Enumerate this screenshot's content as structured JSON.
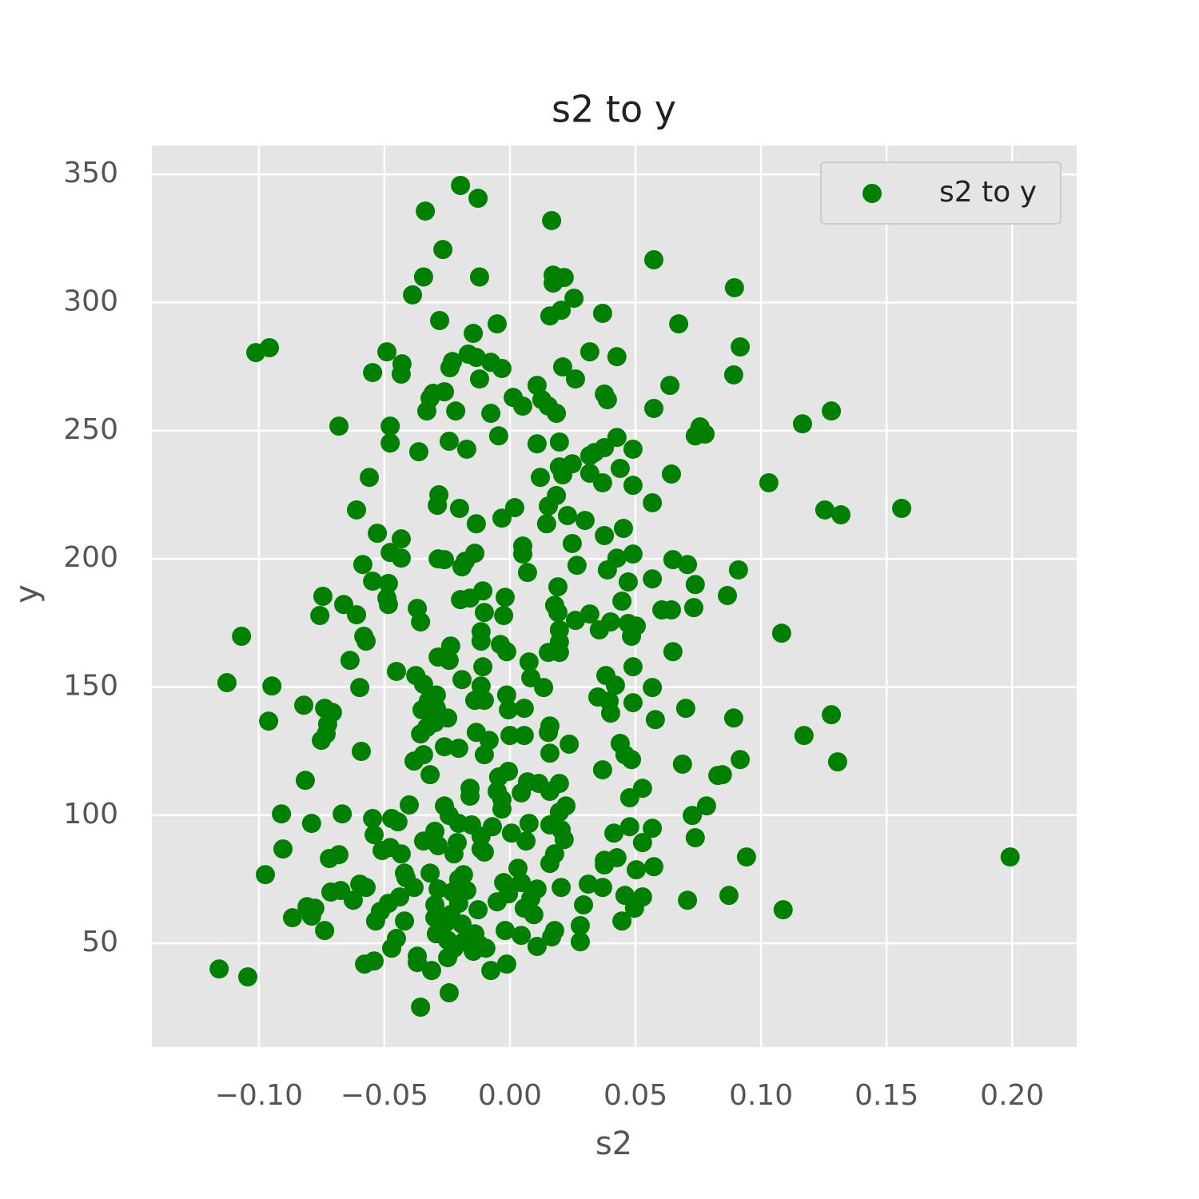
{
  "chart_data": {
    "type": "scatter",
    "title": "s2 to y",
    "x_label": "s2",
    "y_label": "y",
    "xlim": [
      -0.1426,
      0.2257
    ],
    "ylim": [
      9.5,
      361.3
    ],
    "xticks": [
      {
        "value": -0.1,
        "label": "−0.10"
      },
      {
        "value": -0.05,
        "label": "−0.05"
      },
      {
        "value": 0,
        "label": "0.00"
      },
      {
        "value": 0.05,
        "label": "0.05"
      },
      {
        "value": 0.1,
        "label": "0.10"
      },
      {
        "value": 0.15,
        "label": "0.15"
      },
      {
        "value": 0.2,
        "label": "0.20"
      }
    ],
    "yticks": [
      50,
      100,
      150,
      200,
      250,
      300,
      350
    ],
    "grid": true,
    "legend": "upper right",
    "series": [
      {
        "name": "s2 to y",
        "color": "#008000",
        "x": [
          -0.0197,
          -0.0127,
          -0.0337,
          0.0166,
          -0.0267,
          0.0573,
          -0.0344,
          -0.0121,
          0.0172,
          0.0216,
          0.0172,
          0.0894,
          -0.0388,
          0.0255,
          0.0204,
          0.0159,
          0.0369,
          -0.028,
          -0.0051,
          0.0672,
          -0.0146,
          -0.1012,
          -0.0958,
          -0.049,
          0.0917,
          -0.0166,
          0.0318,
          0.0426,
          -0.043,
          -0.0229,
          -0.0134,
          -0.0076,
          -0.0239,
          -0.0032,
          0.021,
          -0.0547,
          -0.0433,
          -0.0121,
          0.0261,
          0.0891,
          0.0108,
          0.0637,
          -0.0261,
          -0.0306,
          0.0376,
          0.0013,
          0.0127,
          0.0388,
          -0.0318,
          0.0051,
          0.0153,
          -0.0216,
          -0.0331,
          -0.0076,
          0.0185,
          0.0573,
          0.128,
          -0.0681,
          -0.0477,
          0.1165,
          0.0757,
          0.0738,
          0.0777,
          -0.0045,
          0.0426,
          -0.0477,
          -0.0242,
          0.0108,
          0.0197,
          -0.0172,
          -0.0363,
          0.049,
          0.0376,
          0.0337,
          0.0318,
          0.0248,
          0.0197,
          0.0439,
          0.0318,
          0.021,
          0.0121,
          0.0643,
          -0.056,
          0.0369,
          0.049,
          0.1031,
          -0.0283,
          0.0185,
          -0.0289,
          -0.0201,
          0.0019,
          0.0153,
          0.0567,
          -0.0611,
          0.1254,
          0.1318,
          0.156,
          -0.0032,
          0.0229,
          -0.0134,
          0.0146,
          0.0299,
          0.0452,
          -0.0528,
          -0.0433,
          0.0376,
          0.0248,
          0.0051,
          -0.0477,
          -0.0433,
          -0.0286,
          -0.0261,
          -0.0178,
          -0.014,
          0.0051,
          0.049,
          0.0426,
          0.0649,
          0.0707,
          -0.0586,
          -0.0191,
          0.0267,
          0.0388,
          0.091,
          0.007,
          -0.0547,
          -0.0484,
          0.0471,
          0.0567,
          0.0738,
          0.0191,
          -0.0108,
          -0.0745,
          0.0866,
          -0.049,
          -0.0019,
          -0.0197,
          -0.0159,
          0.0446,
          -0.0484,
          -0.0662,
          0.0178,
          -0.0369,
          0.0732,
          0.0605,
          0.0643,
          -0.0102,
          0.0191,
          0.0318,
          -0.0757,
          -0.0611,
          -0.0025,
          0.0261,
          0.0401,
          -0.0356,
          0.0471,
          0.0503,
          0.0356,
          0.1082,
          0.0197,
          -0.0115,
          -0.1069,
          -0.0582,
          0.0484,
          -0.0573,
          -0.0115,
          0.0197,
          -0.0038,
          -0.0236,
          -0.0013,
          0.0153,
          0.0197,
          0.0649,
          -0.0286,
          -0.0242,
          -0.0637,
          0.0076,
          -0.0108,
          0.049,
          -0.0452,
          -0.0375,
          0.0382,
          0.0083,
          -0.0191,
          -0.1127,
          -0.0948,
          -0.0344,
          0.042,
          0.0134,
          -0.0115,
          -0.0598,
          0.0567,
          -0.0293,
          -0.0013,
          0.035,
          -0.014,
          -0.0102,
          0.0395,
          0.049,
          -0.0325,
          -0.0821,
          -0.0738,
          -0.0293,
          0.0057,
          -0.0006,
          0.07,
          -0.035,
          -0.0707,
          0.0401,
          0.128,
          0.0891,
          -0.0248,
          0.0579,
          -0.0961,
          -0.0299,
          -0.0726,
          0.0159,
          -0.0331,
          0.0153,
          -0.0134,
          -0.0732,
          -0.0356,
          0,
          0.0057,
          0.1171,
          -0.0751,
          -0.0083,
          0.0439,
          0.0236,
          -0.0261,
          -0.0204,
          -0.0592,
          0.0159,
          0.0458,
          -0.0102,
          -0.0344,
          0.0484,
          0.0917,
          0.1305,
          -0.0382,
          0.0687,
          0.0369,
          -0.0318,
          -0.0006,
          0.0828,
          0.0846,
          -0.0815,
          -0.0045,
          0.007,
          0.0115,
          0.0197,
          -0.0159,
          0.0528,
          -0.0051,
          0.0159,
          -0.0159,
          0.0045,
          0.0477,
          -0.0032,
          -0.0401,
          -0.0261,
          0.0223,
          0.0783,
          -0.0032,
          -0.091,
          -0.0668,
          -0.0242,
          0.0197,
          0.0726,
          -0.0547,
          -0.0471,
          -0.0446,
          -0.079,
          -0.0204,
          -0.0153,
          0.0076,
          0.0159,
          -0.007,
          0.0477,
          0.0567,
          0.0204,
          -0.0299,
          0.0006,
          0.0414,
          -0.0541,
          -0.0115,
          0.0738,
          0.0216,
          -0.0344,
          -0.021,
          0.0064,
          0.0528,
          -0.0286,
          -0.0477,
          -0.0904,
          -0.0115,
          -0.0509,
          -0.0102,
          -0.0223,
          0.0178,
          0.0942,
          0.1992,
          -0.0681,
          -0.0719,
          -0.0433,
          0.0426,
          0.0376,
          0.0159,
          0.0376,
          0.0573,
          0.0503,
          0.0032,
          -0.0318,
          -0.0974,
          -0.042,
          -0.0185,
          -0.0414,
          -0.0204,
          -0.0025,
          0.0045,
          0.0312,
          -0.0598,
          -0.0286,
          -0.0382,
          -0.0573,
          0.0204,
          0.0108,
          0.0369,
          -0.0674,
          -0.0713,
          -0.0172,
          -0.0229,
          -0.0006,
          0.0872,
          0.0458,
          0.0528,
          -0.0439,
          0.0083,
          0.0707,
          -0.0624,
          -0.0051,
          -0.0484,
          -0.0204,
          -0.0299,
          0.0293,
          -0.0808,
          -0.0777,
          0.0057,
          -0.0127,
          0.0496,
          0.1088,
          -0.0516,
          -0.0236,
          0.0095,
          -0.079,
          -0.0866,
          -0.0299,
          0.0446,
          -0.0535,
          -0.042,
          -0.0255,
          -0.0191,
          0.028,
          -0.0738,
          -0.0019,
          0.0178,
          -0.0293,
          -0.014,
          0.0045,
          0.0166,
          -0.0452,
          -0.0248,
          0.028,
          -0.0185,
          -0.0121,
          0.0108,
          -0.0223,
          -0.0471,
          -0.0096,
          -0.0146,
          -0.0248,
          -0.0369,
          -0.0579,
          -0.0541,
          -0.0369,
          -0.0013,
          -0.1158,
          -0.0312,
          -0.0076,
          -0.1044,
          -0.0242,
          -0.0356
        ],
        "values": [
          345.7,
          340.7,
          335.7,
          332,
          320.7,
          316.7,
          310,
          310,
          310.7,
          309.8,
          307.6,
          305.8,
          303,
          301.7,
          297,
          294.8,
          295.8,
          293,
          291.7,
          291.7,
          288,
          280.5,
          282.4,
          280.8,
          282.7,
          279.9,
          280.8,
          278.9,
          276.1,
          277,
          278.6,
          276.7,
          274.6,
          274.3,
          274.9,
          272.7,
          272.1,
          270.2,
          270.2,
          271.8,
          267.7,
          267.7,
          265.2,
          264.6,
          264.3,
          263,
          262.1,
          262.1,
          262.7,
          259.6,
          259.6,
          257.7,
          257.7,
          256.8,
          256.8,
          258.7,
          257.7,
          251.8,
          251.8,
          252.7,
          251.5,
          248,
          248.7,
          248,
          247.4,
          245.2,
          245.9,
          244.9,
          245.6,
          242.8,
          241.8,
          242.8,
          243.4,
          241.5,
          240.3,
          237.1,
          235.9,
          235.3,
          233.4,
          232.8,
          231.8,
          233.1,
          231.8,
          229.7,
          228.7,
          229.7,
          225,
          224.7,
          220.9,
          219.7,
          220,
          220.6,
          221.9,
          219.1,
          219.1,
          217.2,
          219.7,
          215.9,
          216.9,
          213.7,
          213.7,
          215,
          211.9,
          210,
          207.8,
          209.1,
          206,
          205,
          202.5,
          200.3,
          200,
          199.7,
          199.1,
          202.2,
          201.9,
          201.9,
          200.3,
          199.7,
          197.8,
          197.8,
          196.9,
          197.5,
          195.7,
          195.7,
          194.7,
          191.3,
          190.4,
          191,
          192.2,
          190,
          189.1,
          187.5,
          185.4,
          185.7,
          184.7,
          185,
          184.1,
          184.7,
          183.5,
          182.2,
          182.2,
          181.9,
          180.7,
          181,
          180.1,
          180.1,
          179.1,
          179.1,
          178.5,
          177.9,
          178.2,
          177.9,
          176,
          175.4,
          175.4,
          174.8,
          173.8,
          172.3,
          171,
          172.3,
          171.6,
          169.8,
          169.8,
          169.8,
          167.9,
          167.9,
          167.6,
          166.6,
          166,
          163.8,
          163.5,
          163.5,
          163.8,
          161.7,
          160.4,
          160.4,
          159.8,
          157.9,
          157.9,
          156.1,
          154.5,
          154.5,
          153.6,
          152.9,
          151.7,
          150.4,
          151.1,
          150.7,
          149.8,
          150.4,
          149.8,
          149.8,
          146.9,
          146.9,
          146.1,
          144.8,
          144.8,
          144.5,
          143.9,
          144.5,
          142.9,
          141.7,
          141.7,
          141.7,
          141.1,
          141.7,
          141.1,
          140.1,
          139.8,
          139.2,
          137.9,
          137.9,
          137.3,
          136.7,
          136.1,
          135.5,
          134.8,
          134.2,
          132.3,
          132.3,
          131.7,
          131.7,
          131.1,
          131.1,
          131.1,
          129.2,
          129.2,
          128,
          127.7,
          126.7,
          126.1,
          124.9,
          124.2,
          123.6,
          123.6,
          123.6,
          121.7,
          121.7,
          120.8,
          121.1,
          119.9,
          117.7,
          115.8,
          117.1,
          115.5,
          115.8,
          113.6,
          114.9,
          113,
          112.4,
          112.4,
          110.5,
          110.5,
          109.3,
          109.3,
          107.4,
          108.7,
          106.8,
          106.1,
          104,
          103.6,
          103.6,
          103.6,
          102.4,
          100.5,
          100.5,
          99.9,
          101.2,
          99.9,
          98.7,
          98.7,
          97.4,
          96.8,
          96.8,
          96.2,
          96.8,
          96.2,
          95.5,
          95.5,
          94.9,
          94.3,
          93.7,
          93,
          93,
          92.4,
          91.8,
          91.2,
          90.5,
          89.9,
          89.3,
          89.9,
          89.3,
          88.1,
          87.4,
          86.8,
          86.8,
          86.2,
          85.6,
          84.9,
          84.9,
          83.7,
          83.7,
          84.6,
          83.1,
          84.9,
          83.4,
          82.4,
          81.2,
          80.6,
          79.9,
          78.7,
          79.3,
          77.4,
          76.8,
          77.4,
          76.8,
          75.6,
          75,
          73.7,
          73.7,
          73.1,
          73.1,
          71.2,
          71.8,
          71.8,
          71.8,
          71.2,
          71.8,
          70.6,
          70,
          70.6,
          70,
          69.3,
          68.7,
          68.7,
          68.1,
          68.1,
          67.5,
          66.8,
          66.8,
          66.2,
          65.6,
          65.6,
          65,
          65,
          64.3,
          63.7,
          63.7,
          63.1,
          63.7,
          63.1,
          62.5,
          61.2,
          61.2,
          60.6,
          60,
          60,
          58.7,
          58.7,
          58.7,
          58.1,
          57.5,
          56.9,
          55,
          55,
          55,
          53.7,
          53.7,
          53.1,
          52.5,
          51.9,
          51.2,
          50.6,
          50.6,
          49.4,
          48.8,
          48.1,
          48.1,
          48.1,
          46.9,
          44.4,
          45,
          41.9,
          43.1,
          42.5,
          41.9,
          40,
          39.4,
          39.4,
          36.9,
          30.7,
          25.1
        ]
      }
    ]
  }
}
